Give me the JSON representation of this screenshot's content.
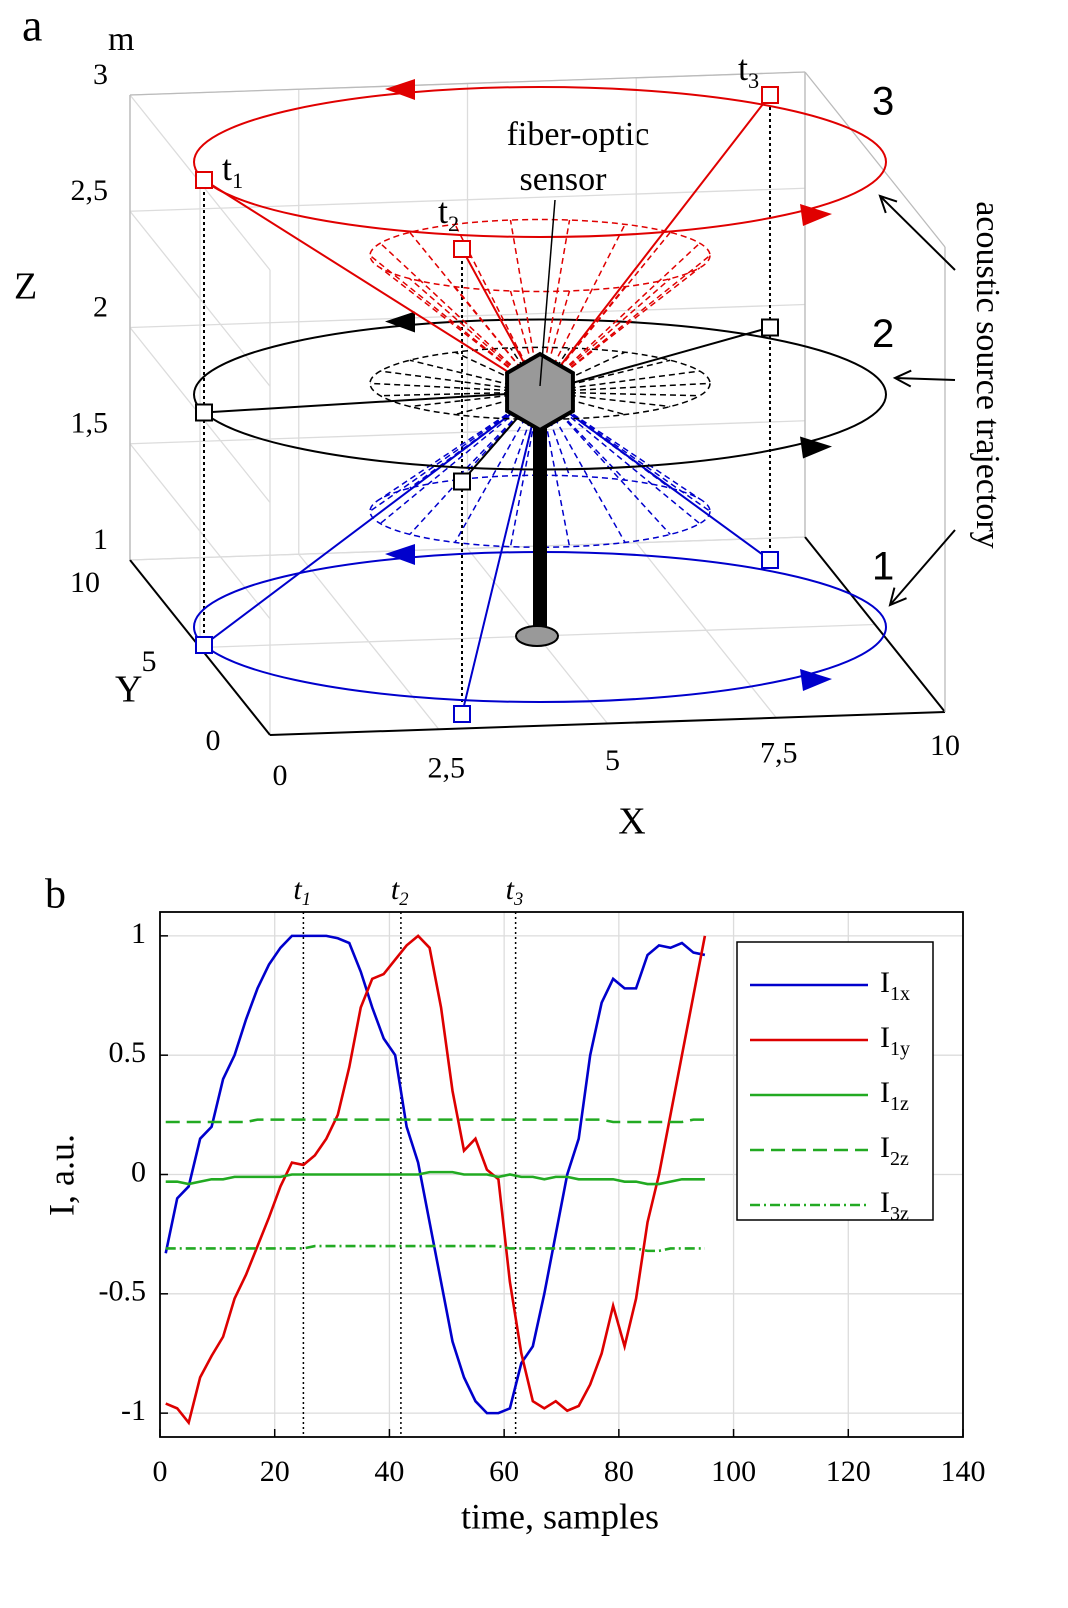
{
  "chart_data": [
    {
      "type": "trajectory3d",
      "panel_label": "a",
      "unit_label": "m",
      "xlabel": "X",
      "ylabel": "Y",
      "zlabel": "Z",
      "xlim": [
        0,
        10
      ],
      "ylim": [
        0,
        10
      ],
      "zlim": [
        1,
        3
      ],
      "xticks": [
        0,
        {
          "value": 2.5,
          "label": "2,5"
        },
        5,
        {
          "value": 7.5,
          "label": "7,5"
        },
        10
      ],
      "yticks": [
        0,
        5,
        10
      ],
      "zticks": [
        1,
        {
          "value": 1.5,
          "label": "1,5"
        },
        2,
        {
          "value": 2.5,
          "label": "2,5"
        },
        3
      ],
      "sensor_label": [
        "fiber-optic",
        "sensor"
      ],
      "trajectory_label": "acoustic source trajectory",
      "trajectories": [
        {
          "name": "1",
          "color": "#0000cc",
          "z": 1
        },
        {
          "name": "2",
          "color": "#000000",
          "z": 2
        },
        {
          "name": "3",
          "color": "#e00000",
          "z": 3
        }
      ],
      "time_labels": [
        {
          "label": "t",
          "sub": "1"
        },
        {
          "label": "t",
          "sub": "2"
        },
        {
          "label": "t",
          "sub": "3"
        }
      ]
    },
    {
      "type": "line",
      "panel_label": "b",
      "xlabel": "time, samples",
      "ylabel": "I, a.u.",
      "xlim": [
        0,
        140
      ],
      "ylim": [
        -1.1,
        1.1
      ],
      "xticks": [
        0,
        20,
        40,
        60,
        80,
        100,
        120,
        140
      ],
      "yticks": [
        -1,
        -0.5,
        0,
        0.5,
        1
      ],
      "grid": true,
      "legend": "upper right",
      "markers": [
        {
          "x": 25,
          "label": "t",
          "sub": "1"
        },
        {
          "x": 42,
          "label": "t",
          "sub": "2"
        },
        {
          "x": 62,
          "label": "t",
          "sub": "3"
        }
      ],
      "x": [
        1,
        3,
        5,
        7,
        9,
        11,
        13,
        15,
        17,
        19,
        21,
        23,
        25,
        27,
        29,
        31,
        33,
        35,
        37,
        39,
        41,
        43,
        45,
        47,
        49,
        51,
        53,
        55,
        57,
        59,
        61,
        63,
        65,
        67,
        69,
        71,
        73,
        75,
        77,
        79,
        81,
        83,
        85,
        87,
        89,
        91,
        93,
        95
      ],
      "series": [
        {
          "name": "I",
          "name_sub": "1x",
          "color": "#0000cc",
          "dash": "solid",
          "values": [
            -0.33,
            -0.1,
            -0.05,
            0.15,
            0.2,
            0.4,
            0.5,
            0.65,
            0.78,
            0.88,
            0.95,
            1.0,
            1.0,
            1.0,
            1.0,
            0.99,
            0.97,
            0.85,
            0.7,
            0.57,
            0.5,
            0.2,
            0.05,
            -0.2,
            -0.45,
            -0.7,
            -0.85,
            -0.95,
            -1.0,
            -1.0,
            -0.98,
            -0.79,
            -0.72,
            -0.5,
            -0.25,
            0.0,
            0.15,
            0.5,
            0.72,
            0.82,
            0.78,
            0.78,
            0.92,
            0.96,
            0.95,
            0.97,
            0.93,
            0.92
          ]
        },
        {
          "name": "I",
          "name_sub": "1y",
          "color": "#dd0000",
          "dash": "solid",
          "values": [
            -0.96,
            -0.98,
            -1.04,
            -0.85,
            -0.76,
            -0.68,
            -0.52,
            -0.42,
            -0.3,
            -0.18,
            -0.05,
            0.05,
            0.04,
            0.08,
            0.15,
            0.25,
            0.45,
            0.7,
            0.82,
            0.84,
            0.9,
            0.96,
            1.0,
            0.95,
            0.7,
            0.35,
            0.1,
            0.15,
            0.02,
            -0.02,
            -0.45,
            -0.75,
            -0.95,
            -0.98,
            -0.95,
            -0.99,
            -0.97,
            -0.88,
            -0.75,
            -0.55,
            -0.72,
            -0.52,
            -0.2,
            0.0,
            0.25,
            0.5,
            0.75,
            1.0
          ]
        },
        {
          "name": "I",
          "name_sub": "1z",
          "color": "#22aa22",
          "dash": "solid",
          "values": [
            -0.03,
            -0.03,
            -0.04,
            -0.03,
            -0.02,
            -0.02,
            -0.01,
            -0.01,
            -0.01,
            -0.01,
            -0.01,
            0,
            0,
            0,
            0,
            0,
            0,
            0,
            0,
            0,
            0,
            0,
            0,
            0.01,
            0.01,
            0.01,
            0,
            0,
            0,
            -0.01,
            0,
            -0.01,
            -0.01,
            -0.02,
            -0.01,
            -0.01,
            -0.02,
            -0.02,
            -0.02,
            -0.02,
            -0.03,
            -0.03,
            -0.04,
            -0.04,
            -0.03,
            -0.02,
            -0.02,
            -0.02
          ]
        },
        {
          "name": "I",
          "name_sub": "2z",
          "color": "#22aa22",
          "dash": "dashed",
          "values": [
            0.22,
            0.22,
            0.22,
            0.22,
            0.22,
            0.22,
            0.22,
            0.22,
            0.23,
            0.23,
            0.23,
            0.23,
            0.23,
            0.23,
            0.23,
            0.23,
            0.23,
            0.23,
            0.23,
            0.23,
            0.23,
            0.23,
            0.23,
            0.23,
            0.23,
            0.23,
            0.23,
            0.23,
            0.23,
            0.23,
            0.23,
            0.23,
            0.23,
            0.23,
            0.23,
            0.23,
            0.23,
            0.23,
            0.23,
            0.22,
            0.22,
            0.22,
            0.22,
            0.22,
            0.22,
            0.22,
            0.23,
            0.23
          ]
        },
        {
          "name": "I",
          "name_sub": "3z",
          "color": "#22aa22",
          "dash": "dashdot",
          "values": [
            -0.31,
            -0.31,
            -0.31,
            -0.31,
            -0.31,
            -0.31,
            -0.31,
            -0.31,
            -0.31,
            -0.31,
            -0.31,
            -0.31,
            -0.31,
            -0.3,
            -0.3,
            -0.3,
            -0.3,
            -0.3,
            -0.3,
            -0.3,
            -0.3,
            -0.3,
            -0.3,
            -0.3,
            -0.3,
            -0.3,
            -0.3,
            -0.3,
            -0.3,
            -0.3,
            -0.31,
            -0.31,
            -0.31,
            -0.31,
            -0.31,
            -0.31,
            -0.31,
            -0.31,
            -0.31,
            -0.31,
            -0.31,
            -0.31,
            -0.32,
            -0.32,
            -0.31,
            -0.31,
            -0.31,
            -0.31
          ]
        }
      ]
    }
  ]
}
